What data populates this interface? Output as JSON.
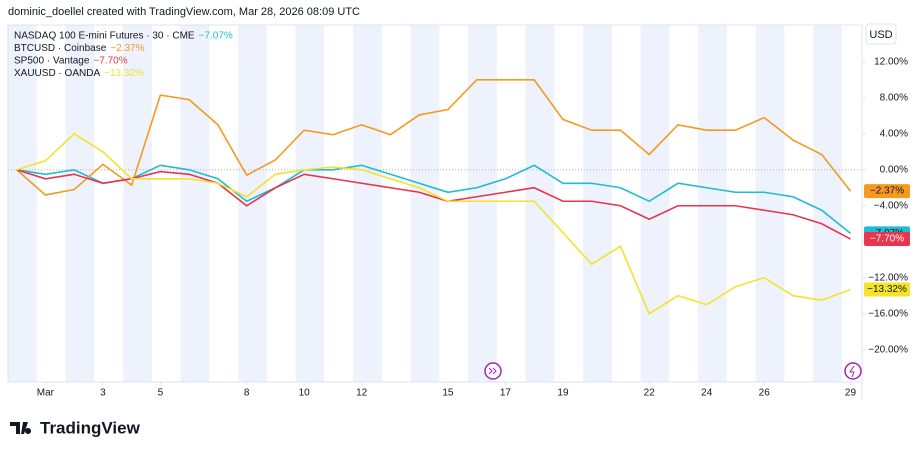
{
  "chart_data": {
    "type": "line",
    "title": "dominic_doellel created with TradingView.com, Mar 28, 2026 08:09 UTC",
    "currency": "USD",
    "brand": "TradingView",
    "x": [
      0,
      1,
      2,
      3,
      4,
      5,
      6,
      7,
      8,
      9,
      10,
      11,
      12,
      13,
      14,
      15,
      16,
      17,
      18,
      19,
      20,
      21,
      22,
      23,
      24,
      25,
      26,
      27,
      28,
      29
    ],
    "xlim": [
      -0.3,
      29.4
    ],
    "xticks": [
      {
        "value": 1,
        "label": "Mar"
      },
      3,
      5,
      8,
      10,
      12,
      15,
      17,
      19,
      22,
      24,
      26,
      29
    ],
    "ylim": [
      -23.6,
      16.1
    ],
    "yticks": [
      {
        "value": 12,
        "label": "12.00%"
      },
      {
        "value": 8,
        "label": "8.00%"
      },
      {
        "value": 4,
        "label": "4.00%"
      },
      {
        "value": 0,
        "label": "0.00%"
      },
      {
        "value": -4,
        "label": "−4.00%"
      },
      {
        "value": -8,
        "label": "−8.00%"
      },
      {
        "value": -12,
        "label": "−12.00%"
      },
      {
        "value": -16,
        "label": "−16.00%"
      },
      {
        "value": -20,
        "label": "−20.00%"
      }
    ],
    "grid": false,
    "series": [
      {
        "name": "NASDAQ 100 E-mini Futures · 30 · CME",
        "color": "#1fbcd2",
        "values": [
          0,
          -0.5,
          0,
          -1.5,
          -1,
          0.5,
          0,
          -1,
          -3.5,
          -2,
          0,
          0,
          0.5,
          -0.5,
          -1.5,
          -2.5,
          -2,
          -1,
          0.5,
          -1.5,
          -1.5,
          -2,
          -3.5,
          -1.5,
          -2,
          -2.5,
          -2.5,
          -3,
          -4.5,
          -7.07
        ],
        "value_labels": [
          null,
          null,
          null,
          null,
          null,
          null,
          null,
          null,
          null,
          null,
          null,
          null,
          null,
          null,
          null,
          null,
          null,
          null,
          null,
          null,
          null,
          null,
          null,
          null,
          null,
          null,
          null,
          null,
          null,
          "−7.07%"
        ]
      },
      {
        "name": "BTCUSD · Coinbase",
        "color": "#f59a1e",
        "values": [
          0,
          -2.8,
          -2.2,
          0.6,
          -1.7,
          8.3,
          7.8,
          5,
          -0.6,
          1.1,
          4.4,
          3.9,
          5,
          3.9,
          6.1,
          6.7,
          10,
          10,
          10,
          5.6,
          4.4,
          4.4,
          1.7,
          5,
          4.4,
          4.4,
          5.8,
          3.3,
          1.7,
          -2.37
        ],
        "value_labels": [
          null,
          null,
          null,
          null,
          null,
          null,
          null,
          null,
          null,
          null,
          null,
          null,
          null,
          null,
          null,
          null,
          null,
          null,
          null,
          null,
          null,
          null,
          null,
          null,
          null,
          null,
          null,
          null,
          null,
          "−2.37%"
        ]
      },
      {
        "name": "SP500 · Vantage",
        "color": "#e8344d",
        "values": [
          0,
          -1,
          -0.5,
          -1.5,
          -1,
          -0.2,
          -0.5,
          -1.5,
          -4,
          -2,
          -0.5,
          -1,
          -1.5,
          -2,
          -2.5,
          -3.5,
          -3,
          -2.5,
          -2,
          -3.5,
          -3.5,
          -4,
          -5.5,
          -4,
          -4,
          -4,
          -4.5,
          -5,
          -6,
          -7.7
        ],
        "value_labels": [
          null,
          null,
          null,
          null,
          null,
          null,
          null,
          null,
          null,
          null,
          null,
          null,
          null,
          null,
          null,
          null,
          null,
          null,
          null,
          null,
          null,
          null,
          null,
          null,
          null,
          null,
          null,
          null,
          null,
          "−7.70%"
        ]
      },
      {
        "name": "XAUUSD · OANDA",
        "color": "#f5e22b",
        "values": [
          0,
          1,
          4,
          2,
          -1,
          -1,
          -1,
          -1.5,
          -3,
          -0.5,
          0,
          0.3,
          0,
          -1,
          -2,
          -3.5,
          -3.5,
          -3.5,
          -3.5,
          -7,
          -10.5,
          -8.5,
          -16,
          -14,
          -15,
          -13,
          -12,
          -14,
          -14.5,
          -13.32
        ],
        "value_labels": [
          null,
          null,
          null,
          null,
          null,
          null,
          null,
          null,
          null,
          null,
          null,
          null,
          null,
          null,
          null,
          null,
          null,
          null,
          null,
          null,
          null,
          null,
          null,
          null,
          null,
          null,
          null,
          null,
          null,
          "−13.32%"
        ]
      }
    ]
  }
}
